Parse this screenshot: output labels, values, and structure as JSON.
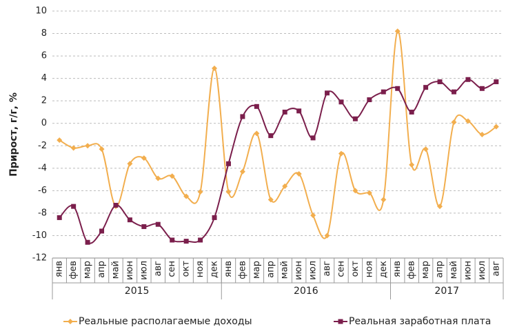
{
  "chart_data": {
    "type": "line",
    "ylabel": "Прирост, г/г, %",
    "groups": [
      {
        "label": "2015",
        "categories": [
          "янв",
          "фев",
          "мар",
          "апр",
          "май",
          "июн",
          "июл",
          "авг",
          "сен",
          "окт",
          "ноя",
          "дек"
        ]
      },
      {
        "label": "2016",
        "categories": [
          "янв",
          "фев",
          "мар",
          "апр",
          "май",
          "июн",
          "июл",
          "авг",
          "сен",
          "окт",
          "ноя",
          "дек"
        ]
      },
      {
        "label": "2017",
        "categories": [
          "янв",
          "фев",
          "мар",
          "апр",
          "май",
          "июн",
          "июл",
          "авг"
        ]
      }
    ],
    "series": [
      {
        "name": "Реальные располагаемые доходы",
        "color": "#f2ae4e",
        "marker": "diamond",
        "values": [
          -1.5,
          -2.2,
          -2.0,
          -2.3,
          -7.4,
          -3.6,
          -3.1,
          -4.9,
          -4.7,
          -6.5,
          -6.1,
          4.9,
          -6.1,
          -4.3,
          -0.9,
          -6.8,
          -5.6,
          -4.5,
          -8.2,
          -10.0,
          -2.7,
          -6.0,
          -6.2,
          -6.8,
          8.2,
          -3.7,
          -2.3,
          -7.4,
          0.1,
          0.2,
          -1.0,
          -0.3
        ]
      },
      {
        "name": "Реальная заработная плата",
        "color": "#7b1f4c",
        "marker": "square",
        "values": [
          -8.4,
          -7.4,
          -10.6,
          -9.6,
          -7.3,
          -8.6,
          -9.2,
          -9.0,
          -10.4,
          -10.5,
          -10.4,
          -8.4,
          -3.6,
          0.6,
          1.5,
          -1.1,
          1.0,
          1.1,
          -1.3,
          2.7,
          1.9,
          0.4,
          2.1,
          2.8,
          3.1,
          1.0,
          3.2,
          3.7,
          2.8,
          3.9,
          3.1,
          3.7
        ]
      }
    ],
    "ylim": [
      -12,
      10
    ],
    "yticks": [
      -12,
      -10,
      -8,
      -6,
      -4,
      -2,
      0,
      2,
      4,
      6,
      8,
      10
    ],
    "grid": true,
    "legend_position": "bottom"
  }
}
